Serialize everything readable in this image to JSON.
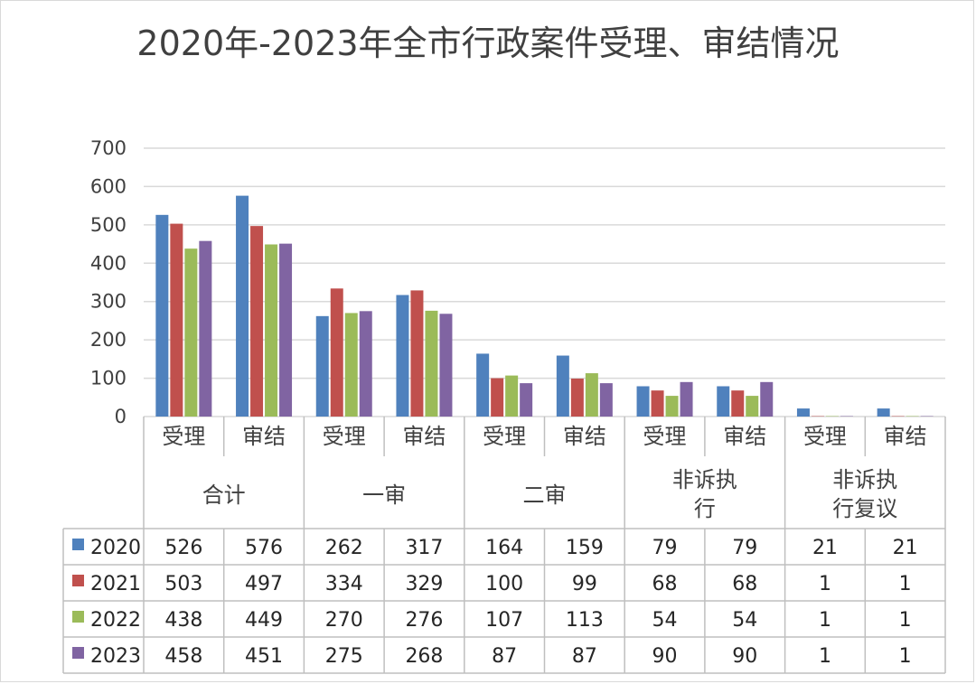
{
  "chart_data": {
    "type": "bar",
    "title": "2020年-2023年全市行政案件受理、审结情况",
    "ylim": [
      0,
      700
    ],
    "y_ticks": [
      "0",
      "100",
      "200",
      "300",
      "400",
      "500",
      "600",
      "700"
    ],
    "grid": true,
    "legend": "data-table",
    "categories": [
      {
        "group": "合计",
        "sub": "受理"
      },
      {
        "group": "合计",
        "sub": "审结"
      },
      {
        "group": "一审",
        "sub": "受理"
      },
      {
        "group": "一审",
        "sub": "审结"
      },
      {
        "group": "二审",
        "sub": "受理"
      },
      {
        "group": "二审",
        "sub": "审结"
      },
      {
        "group": "非诉执行",
        "sub": "受理"
      },
      {
        "group": "非诉执行",
        "sub": "审结"
      },
      {
        "group": "非诉执行复议",
        "sub": "受理"
      },
      {
        "group": "非诉执行复议",
        "sub": "审结"
      }
    ],
    "groups": [
      {
        "lines": [
          "合计"
        ]
      },
      {
        "lines": [
          "一审"
        ]
      },
      {
        "lines": [
          "二审"
        ]
      },
      {
        "lines": [
          "非诉执",
          "行"
        ]
      },
      {
        "lines": [
          "非诉执",
          "行复议"
        ]
      }
    ],
    "series": [
      {
        "name": "2020",
        "color": "#4f81bd",
        "values": [
          526,
          576,
          262,
          317,
          164,
          159,
          79,
          79,
          21,
          21
        ]
      },
      {
        "name": "2021",
        "color": "#c0504d",
        "values": [
          503,
          497,
          334,
          329,
          100,
          99,
          68,
          68,
          1,
          1
        ]
      },
      {
        "name": "2022",
        "color": "#9bbb59",
        "values": [
          438,
          449,
          270,
          276,
          107,
          113,
          54,
          54,
          1,
          1
        ]
      },
      {
        "name": "2023",
        "color": "#8064a2",
        "values": [
          458,
          451,
          275,
          268,
          87,
          87,
          90,
          90,
          1,
          1
        ]
      }
    ]
  }
}
